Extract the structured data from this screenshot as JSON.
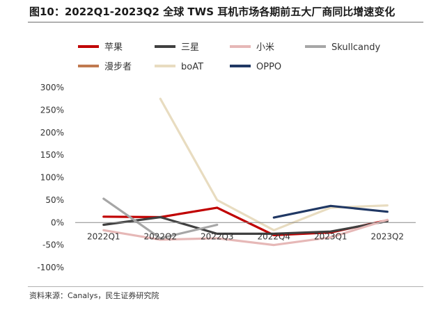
{
  "title": "图10：2022Q1-2023Q2 全球 TWS 耳机市场各期前五大厂商同比增速变化",
  "source": "资料来源：Canalys，民生证券研究院",
  "chart_data": {
    "type": "line",
    "title": "图10：2022Q1-2023Q2 全球 TWS 耳机市场各期前五大厂商同比增速变化",
    "xlabel": "",
    "ylabel": "",
    "categories": [
      "2022Q1",
      "2022Q2",
      "2022Q3",
      "2022Q4",
      "2023Q1",
      "2023Q2"
    ],
    "ylim": [
      -100,
      300
    ],
    "yticks": [
      -100,
      -50,
      0,
      50,
      100,
      150,
      200,
      250,
      300
    ],
    "ytick_labels": [
      "-100%",
      "-50%",
      "0%",
      "50%",
      "100%",
      "150%",
      "200%",
      "250%",
      "300%"
    ],
    "grid": false,
    "legend_position": "top",
    "series": [
      {
        "name": "苹果",
        "color": "#c00000",
        "values": [
          13,
          12,
          33,
          -28,
          -22,
          5
        ]
      },
      {
        "name": "三星",
        "color": "#404040",
        "values": [
          -5,
          12,
          -25,
          -25,
          -20,
          3
        ]
      },
      {
        "name": "小米",
        "color": "#e6b8b7",
        "values": [
          -17,
          -38,
          -35,
          -50,
          -33,
          6
        ]
      },
      {
        "name": "Skullcandy",
        "color": "#a6a6a6",
        "values": [
          53,
          -35,
          -5,
          null,
          null,
          null
        ]
      },
      {
        "name": "漫步者",
        "color": "#c07a50",
        "values": [
          null,
          null,
          null,
          null,
          null,
          null
        ]
      },
      {
        "name": "boAT",
        "color": "#e8dcc0",
        "values": [
          null,
          275,
          50,
          -17,
          33,
          38
        ]
      },
      {
        "name": "OPPO",
        "color": "#203864",
        "values": [
          null,
          null,
          null,
          11,
          37,
          24
        ]
      }
    ]
  }
}
